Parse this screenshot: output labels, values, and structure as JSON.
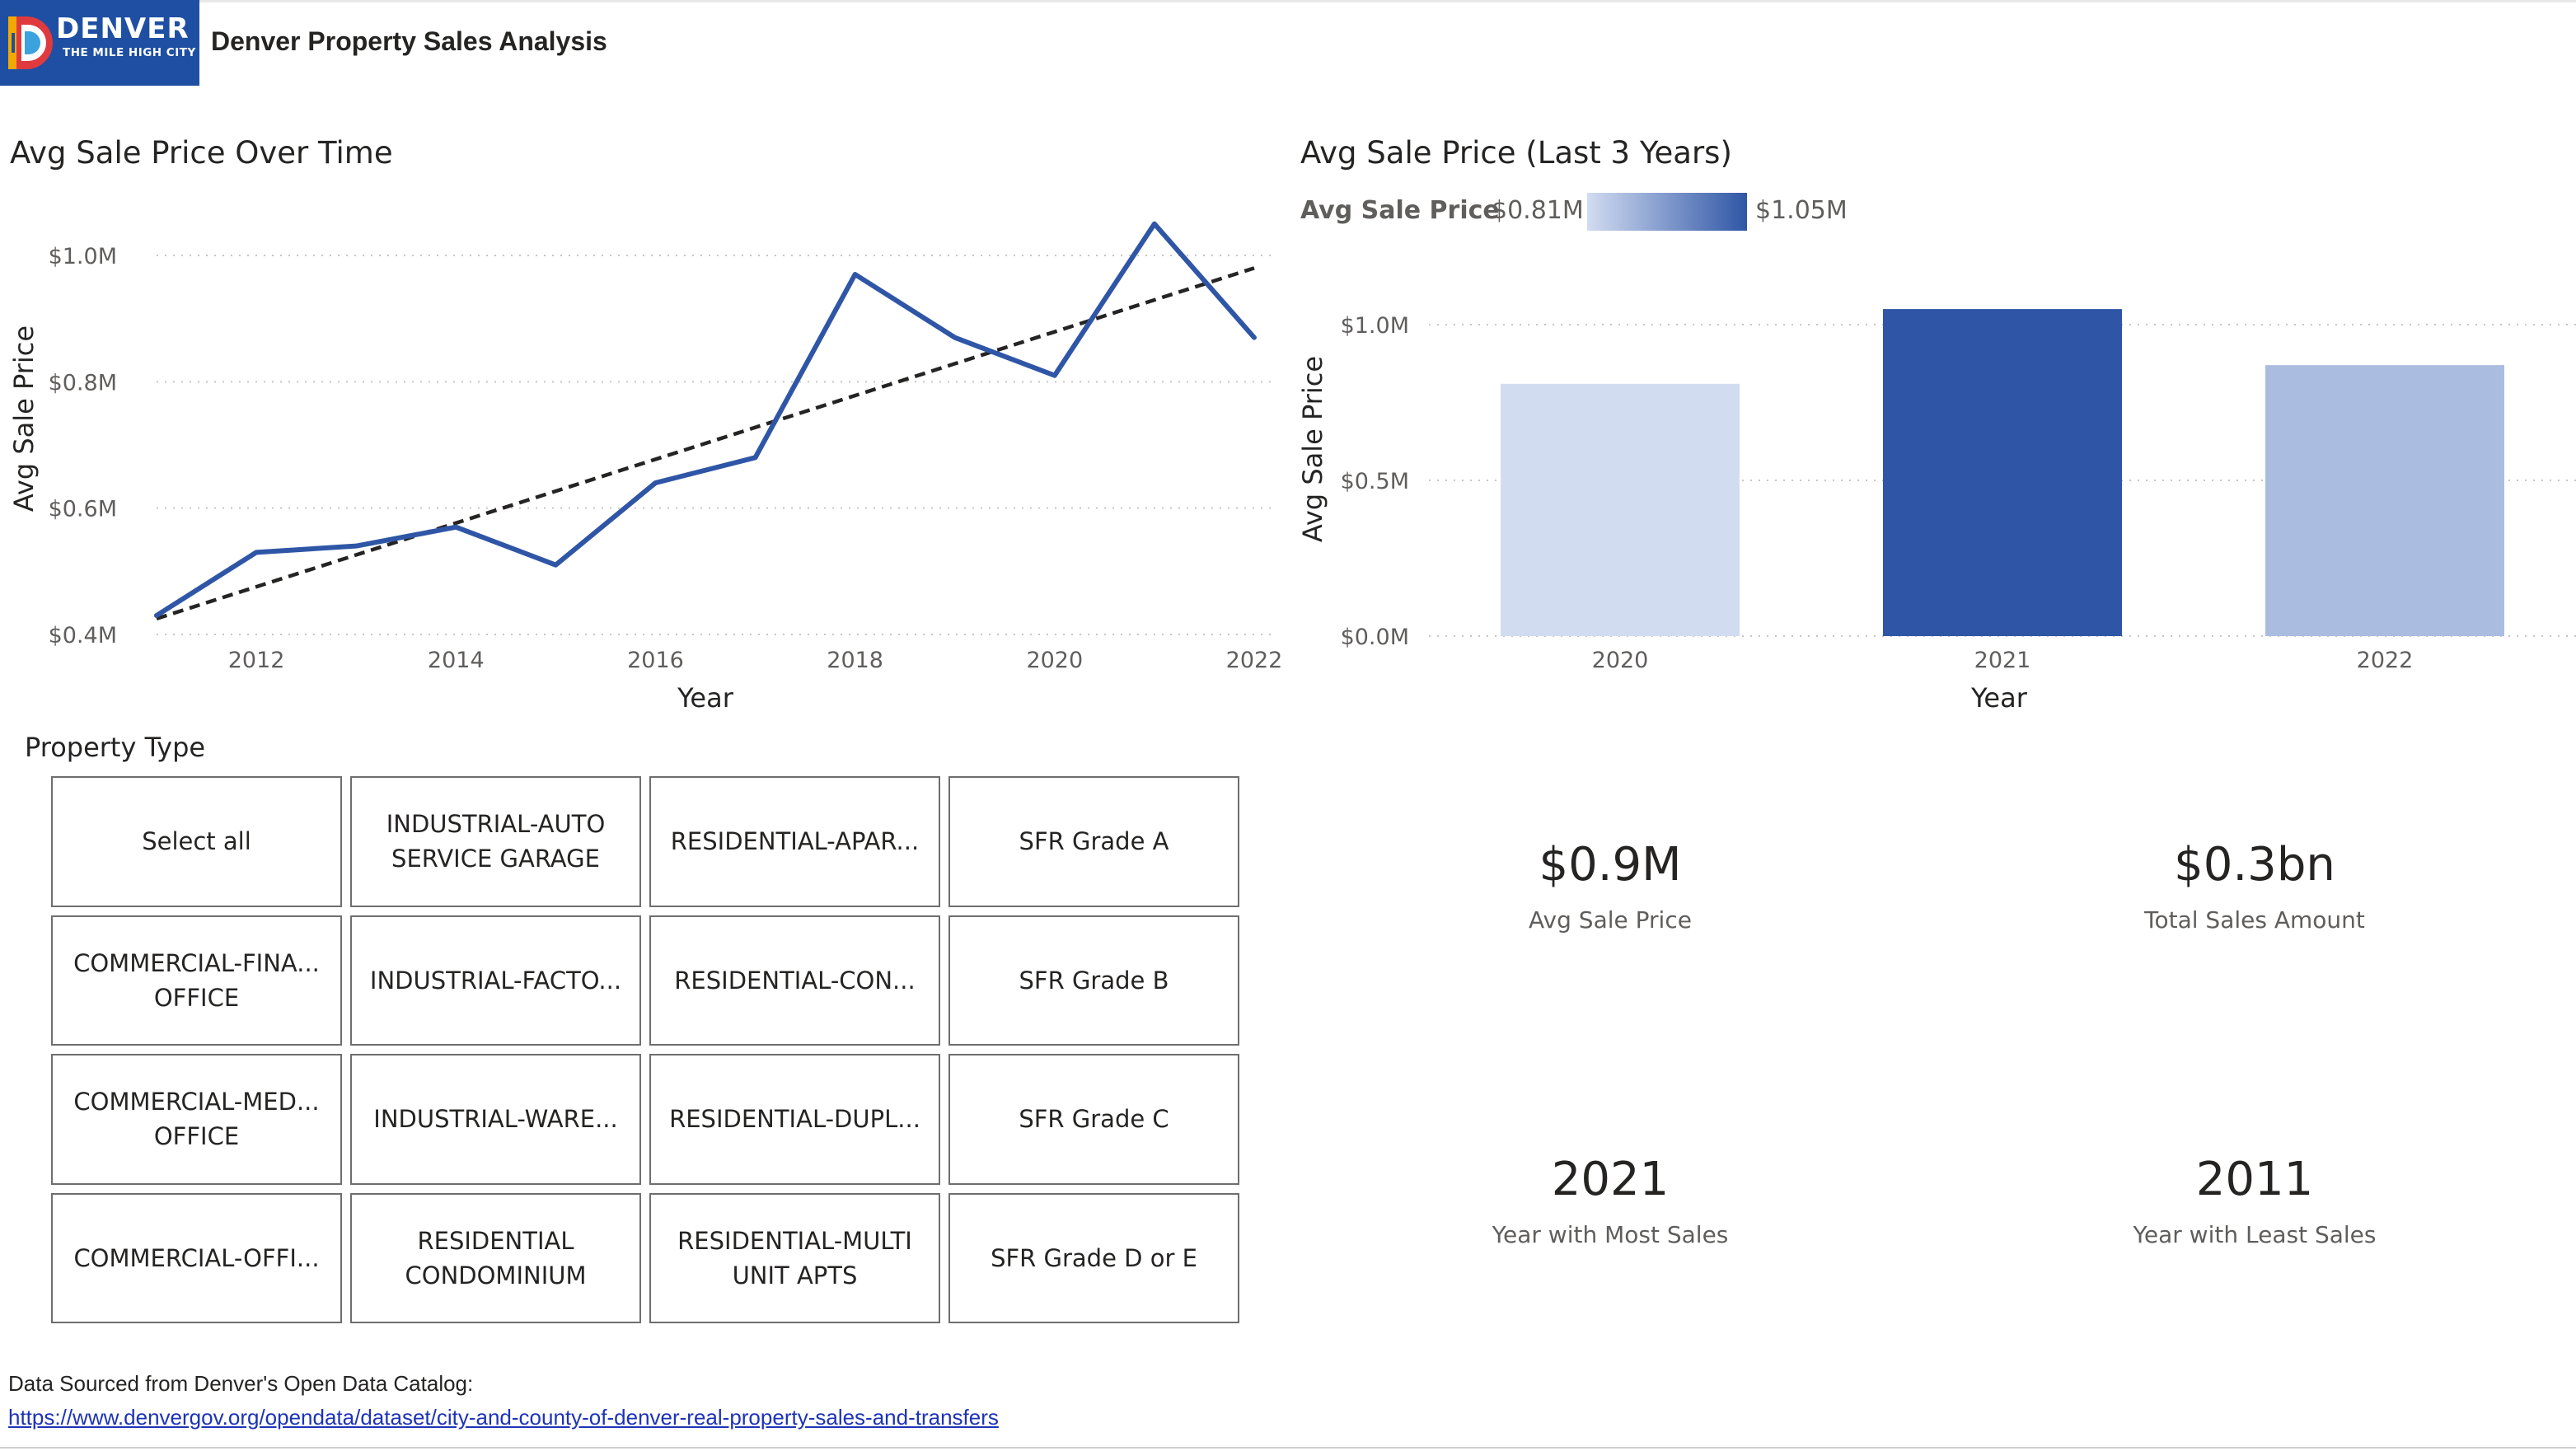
{
  "header": {
    "logo_brand": "DENVER",
    "logo_tagline": "THE MILE HIGH CITY",
    "title": "Denver Property Sales Analysis"
  },
  "colors": {
    "brand": "#1f4fa3",
    "line_series": "#2f56a6",
    "trend_line": "#252423",
    "bar_2020": "#d2dcf1",
    "bar_2021": "#2f56a6",
    "bar_2022": "#aabde0",
    "link": "#1d33b7"
  },
  "chart_data": [
    {
      "type": "line",
      "title": "Avg Sale Price Over Time",
      "xlabel": "Year",
      "ylabel": "Avg Sale Price",
      "x": [
        2011,
        2012,
        2013,
        2014,
        2015,
        2016,
        2017,
        2018,
        2019,
        2020,
        2021,
        2022
      ],
      "x_ticks": [
        2012,
        2014,
        2016,
        2018,
        2020,
        2022
      ],
      "y_ticks": [
        0.4,
        0.6,
        0.8,
        1.0
      ],
      "y_tick_labels": [
        "$0.4M",
        "$0.6M",
        "$0.8M",
        "$1.0M"
      ],
      "ylim": [
        0.4,
        1.0
      ],
      "xlim": [
        2011,
        2022
      ],
      "grid": true,
      "series": [
        {
          "values": [
            0.43,
            0.53,
            0.54,
            0.57,
            0.51,
            0.64,
            0.68,
            0.97,
            0.87,
            0.81,
            1.05,
            0.87
          ]
        }
      ],
      "trend": {
        "type": "linear",
        "start": [
          2011,
          0.425
        ],
        "end": [
          2022,
          0.98
        ],
        "style": "dashed"
      }
    },
    {
      "type": "bar",
      "title": "Avg Sale Price (Last 3 Years)",
      "xlabel": "Year",
      "ylabel": "Avg Sale Price",
      "categories": [
        "2020",
        "2021",
        "2022"
      ],
      "values": [
        0.81,
        1.05,
        0.87
      ],
      "y_ticks": [
        0.0,
        0.5,
        1.0
      ],
      "y_tick_labels": [
        "$0.0M",
        "$0.5M",
        "$1.0M"
      ],
      "ylim": [
        0,
        1.0
      ],
      "grid": true,
      "legend": {
        "title": "Avg Sale Price",
        "min_label": "$0.81M",
        "max_label": "$1.05M",
        "placement": "top-left",
        "type": "gradient"
      }
    }
  ],
  "slicer": {
    "title": "Property Type",
    "tiles": [
      [
        "Select all"
      ],
      [
        "INDUSTRIAL-AUTO",
        "SERVICE GARAGE"
      ],
      [
        "RESIDENTIAL-APAR..."
      ],
      [
        "SFR Grade A"
      ],
      [
        "COMMERCIAL-FINA...",
        "OFFICE"
      ],
      [
        "INDUSTRIAL-FACTO..."
      ],
      [
        "RESIDENTIAL-CON..."
      ],
      [
        "SFR Grade B"
      ],
      [
        "COMMERCIAL-MED...",
        "OFFICE"
      ],
      [
        "INDUSTRIAL-WARE..."
      ],
      [
        "RESIDENTIAL-DUPL..."
      ],
      [
        "SFR Grade C"
      ],
      [
        "COMMERCIAL-OFFI..."
      ],
      [
        "RESIDENTIAL",
        "CONDOMINIUM"
      ],
      [
        "RESIDENTIAL-MULTI",
        "UNIT APTS"
      ],
      [
        "SFR Grade D or E"
      ]
    ]
  },
  "cards": [
    {
      "value": "$0.9M",
      "label": "Avg Sale Price"
    },
    {
      "value": "$0.3bn",
      "label": "Total Sales Amount"
    },
    {
      "value": "2021",
      "label": "Year with Most Sales"
    },
    {
      "value": "2011",
      "label": "Year with Least Sales"
    }
  ],
  "footer": {
    "source_text": "Data Sourced from Denver's Open Data Catalog:",
    "source_link": "https://www.denvergov.org/opendata/dataset/city-and-county-of-denver-real-property-sales-and-transfers"
  }
}
